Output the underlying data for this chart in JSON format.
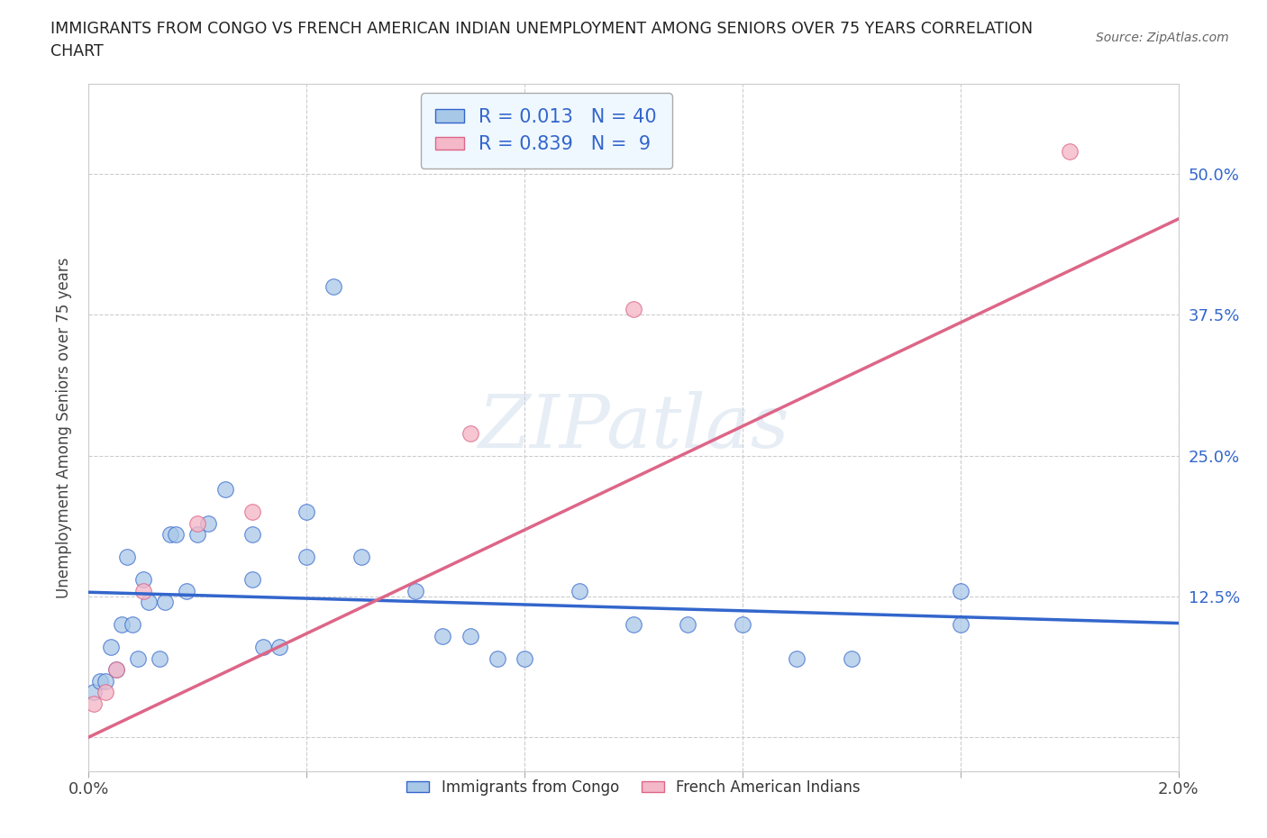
{
  "title_line1": "IMMIGRANTS FROM CONGO VS FRENCH AMERICAN INDIAN UNEMPLOYMENT AMONG SENIORS OVER 75 YEARS CORRELATION",
  "title_line2": "CHART",
  "source": "Source: ZipAtlas.com",
  "xlabel": "",
  "ylabel": "Unemployment Among Seniors over 75 years",
  "xlim": [
    0.0,
    0.02
  ],
  "ylim": [
    -0.03,
    0.58
  ],
  "xticks": [
    0.0,
    0.004,
    0.008,
    0.012,
    0.016,
    0.02
  ],
  "xtick_labels": [
    "0.0%",
    "",
    "",
    "",
    "",
    "2.0%"
  ],
  "yticks": [
    0.0,
    0.125,
    0.25,
    0.375,
    0.5
  ],
  "ytick_labels": [
    "",
    "12.5%",
    "25.0%",
    "37.5%",
    "50.0%"
  ],
  "blue_color": "#a8c8e8",
  "pink_color": "#f4b8c8",
  "blue_line_color": "#3366cc",
  "pink_line_color": "#dd6688",
  "r_blue": 0.013,
  "n_blue": 40,
  "r_pink": 0.839,
  "n_pink": 9,
  "blue_scatter_x": [
    0.0001,
    0.0002,
    0.0003,
    0.0004,
    0.0005,
    0.0006,
    0.0007,
    0.0008,
    0.0009,
    0.001,
    0.0011,
    0.0013,
    0.0014,
    0.0015,
    0.0016,
    0.0018,
    0.002,
    0.0022,
    0.0025,
    0.003,
    0.003,
    0.0032,
    0.0035,
    0.004,
    0.004,
    0.0045,
    0.005,
    0.006,
    0.0065,
    0.007,
    0.0075,
    0.008,
    0.009,
    0.01,
    0.011,
    0.012,
    0.013,
    0.014,
    0.016,
    0.016
  ],
  "blue_scatter_y": [
    0.04,
    0.05,
    0.05,
    0.08,
    0.06,
    0.1,
    0.16,
    0.1,
    0.07,
    0.14,
    0.12,
    0.07,
    0.12,
    0.18,
    0.18,
    0.13,
    0.18,
    0.19,
    0.22,
    0.18,
    0.14,
    0.08,
    0.08,
    0.2,
    0.16,
    0.4,
    0.16,
    0.13,
    0.09,
    0.09,
    0.07,
    0.07,
    0.13,
    0.1,
    0.1,
    0.1,
    0.07,
    0.07,
    0.13,
    0.1
  ],
  "pink_scatter_x": [
    0.0001,
    0.0003,
    0.0005,
    0.001,
    0.002,
    0.003,
    0.007,
    0.01,
    0.018
  ],
  "pink_scatter_y": [
    0.03,
    0.04,
    0.06,
    0.13,
    0.19,
    0.2,
    0.27,
    0.38,
    0.52
  ],
  "watermark": "ZIPatlas",
  "background_color": "#ffffff",
  "grid_color": "#cccccc",
  "legend_box_color": "#f0f8ff"
}
